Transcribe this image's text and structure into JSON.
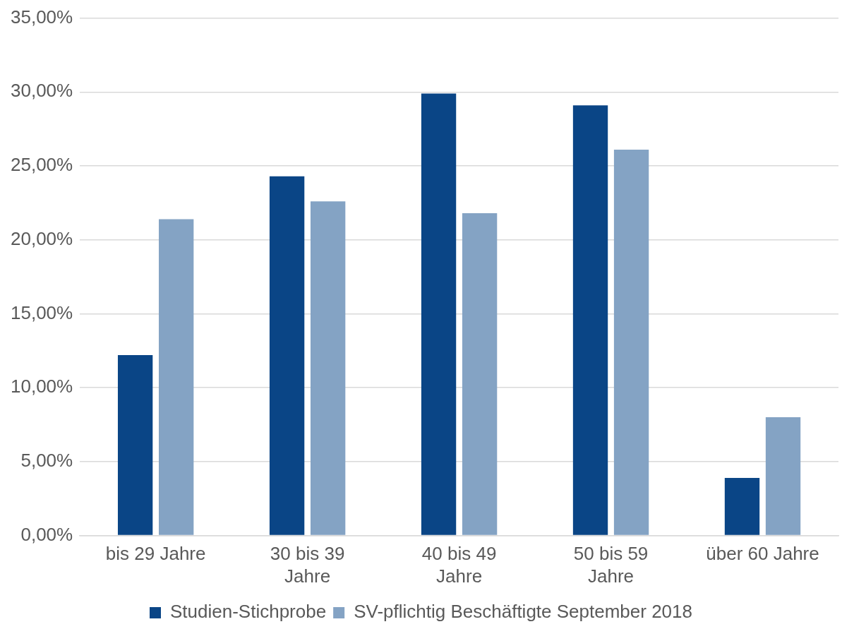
{
  "chart_data": {
    "type": "bar",
    "categories": [
      "bis 29 Jahre",
      "30 bis 39 Jahre",
      "40 bis 49 Jahre",
      "50 bis 59 Jahre",
      "über 60 Jahre"
    ],
    "series": [
      {
        "name": "Studien-Stichprobe",
        "color": "#0a4586",
        "values": [
          12.2,
          24.3,
          29.9,
          29.1,
          3.9
        ]
      },
      {
        "name": "SV-pflichtig Beschäftigte September 2018",
        "color": "#84a3c4",
        "values": [
          21.4,
          22.6,
          21.8,
          26.1,
          8.0
        ]
      }
    ],
    "ylim": [
      0,
      35
    ],
    "yticks": [
      {
        "value": 0,
        "label": "0,00%"
      },
      {
        "value": 5,
        "label": "5,00%"
      },
      {
        "value": 10,
        "label": "10,00%"
      },
      {
        "value": 15,
        "label": "15,00%"
      },
      {
        "value": 20,
        "label": "20,00%"
      },
      {
        "value": 25,
        "label": "25,00%"
      },
      {
        "value": 30,
        "label": "30,00%"
      },
      {
        "value": 35,
        "label": "35,00%"
      }
    ],
    "grid": "y",
    "legend": "bottom"
  }
}
